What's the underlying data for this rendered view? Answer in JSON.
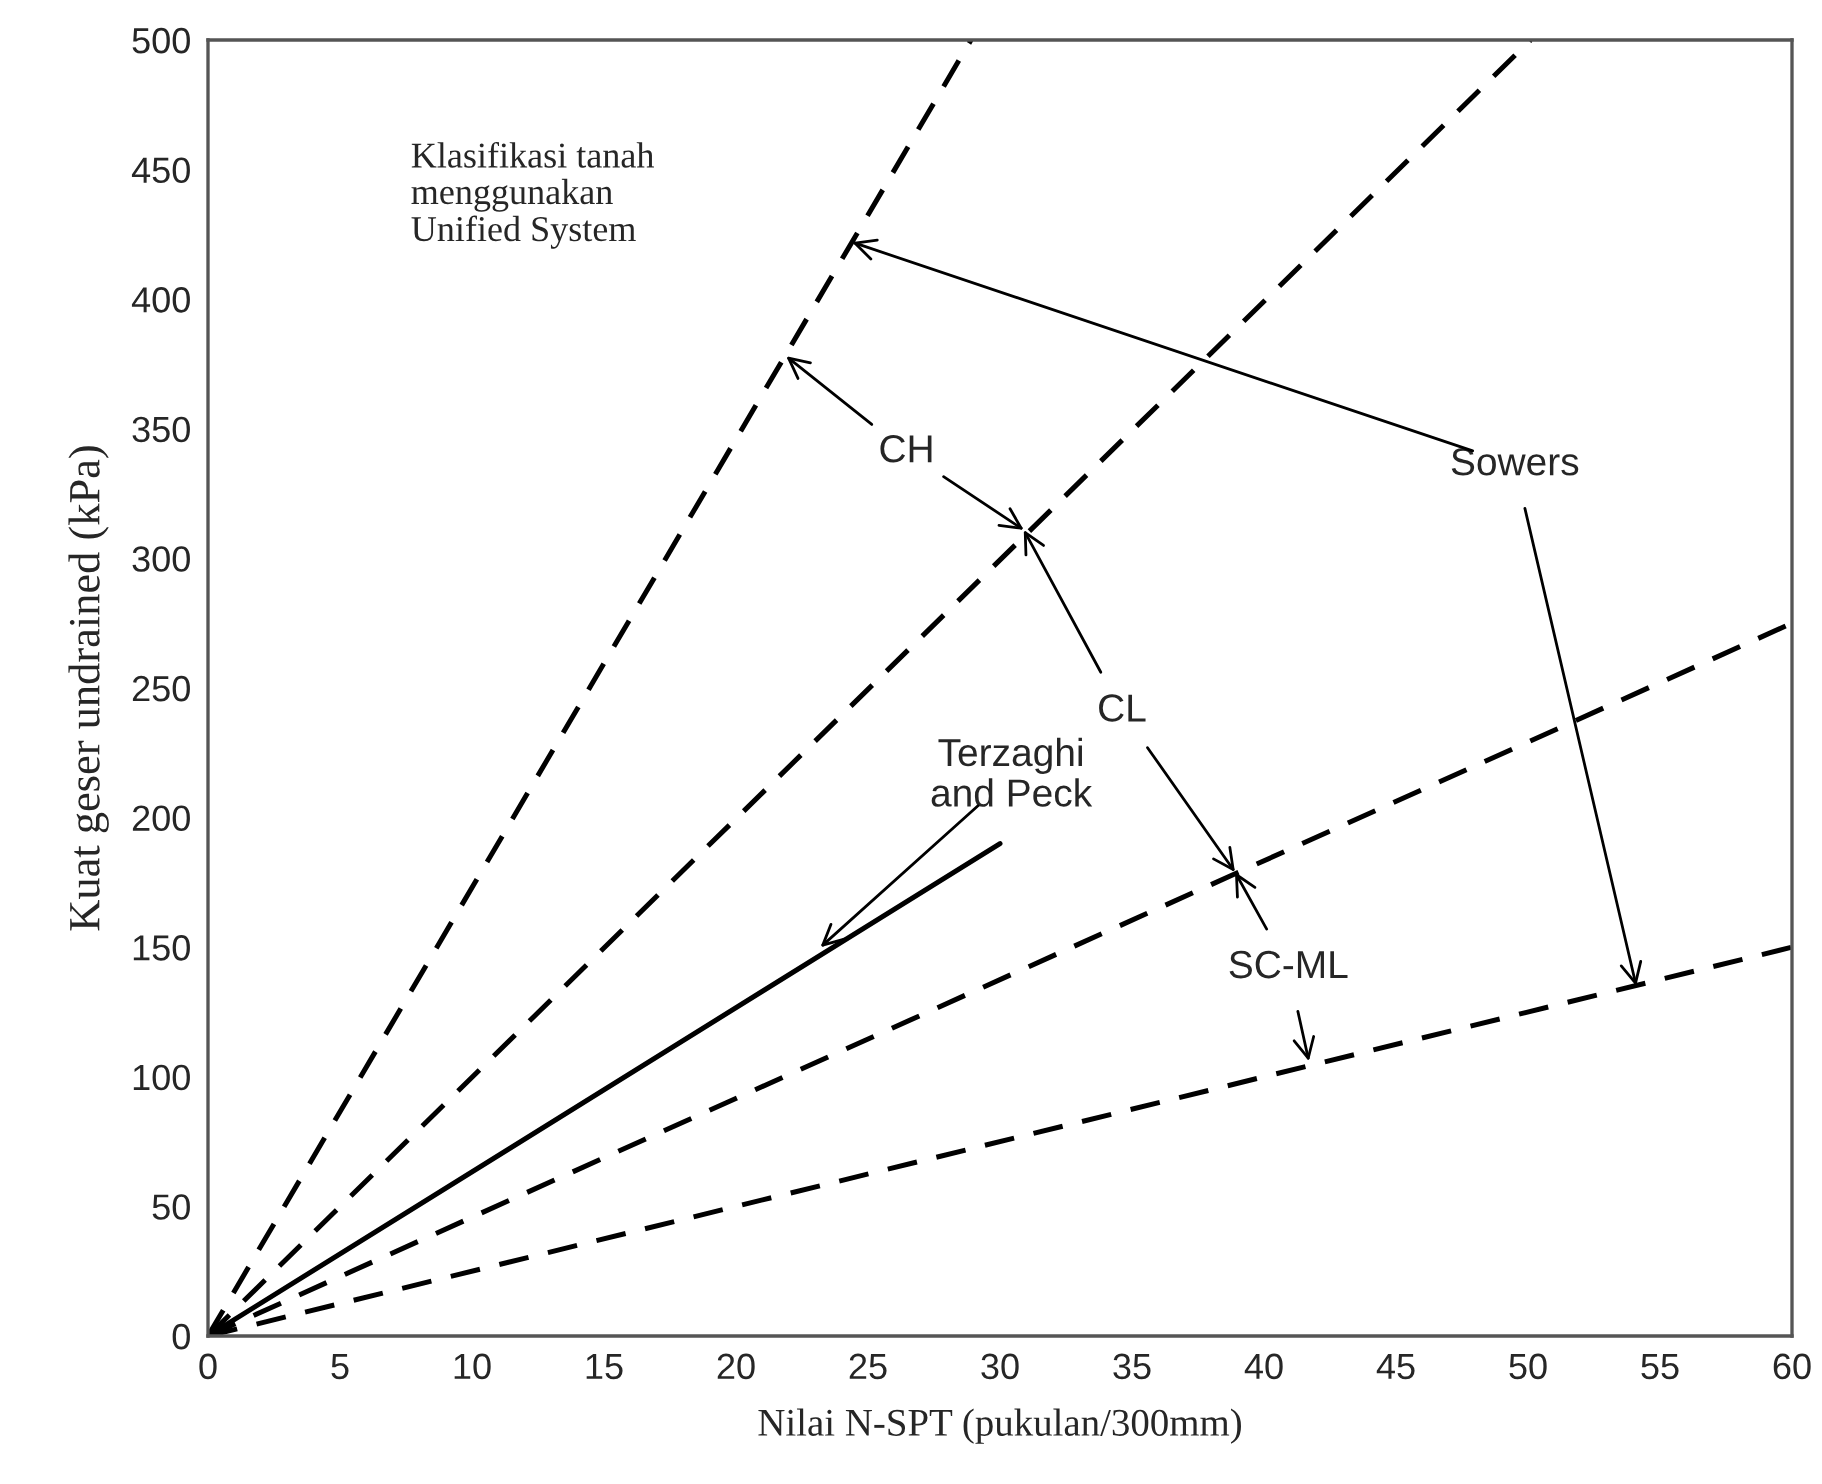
{
  "chart_data": {
    "type": "line",
    "xlabel": "Nilai N-SPT (pukulan/300mm)",
    "ylabel": "Kuat geser undrained (kPa)",
    "xlim": [
      0,
      60
    ],
    "ylim": [
      0,
      500
    ],
    "xticks": [
      0,
      5,
      10,
      15,
      20,
      25,
      30,
      35,
      40,
      45,
      50,
      55,
      60
    ],
    "yticks": [
      0,
      50,
      100,
      150,
      200,
      250,
      300,
      350,
      400,
      450,
      500
    ],
    "grid": false,
    "marker": "none",
    "series": [
      {
        "color": "#000000",
        "line_style": "dashed",
        "x": [
          0,
          28.9
        ],
        "values": [
          0,
          500
        ]
      },
      {
        "color": "#000000",
        "line_style": "dashed",
        "x": [
          0,
          50.1
        ],
        "values": [
          0,
          500
        ]
      },
      {
        "color": "#000000",
        "line_style": "dashed",
        "x": [
          0,
          60
        ],
        "values": [
          0,
          275
        ]
      },
      {
        "color": "#000000",
        "line_style": "dashed",
        "x": [
          0,
          60
        ],
        "values": [
          0,
          150
        ]
      },
      {
        "color": "#000000",
        "line_style": "solid",
        "x": [
          0,
          30
        ],
        "values": [
          0,
          190
        ]
      }
    ],
    "annotations": [
      "Klasifikasi tanah\nmenggunakan\nUnified System",
      {
        "text": "CH",
        "x": 21.9,
        "y": 378
      },
      {
        "text": "CL",
        "x": 30.9,
        "y": 311
      },
      {
        "text": "SC-ML",
        "x": 38.9,
        "y": 179
      },
      {
        "text": "Sowers",
        "x": 24.4,
        "y": 422
      },
      {
        "text": "Terzaghi\nand Peck",
        "x": 23.2,
        "y": 150
      }
    ]
  }
}
